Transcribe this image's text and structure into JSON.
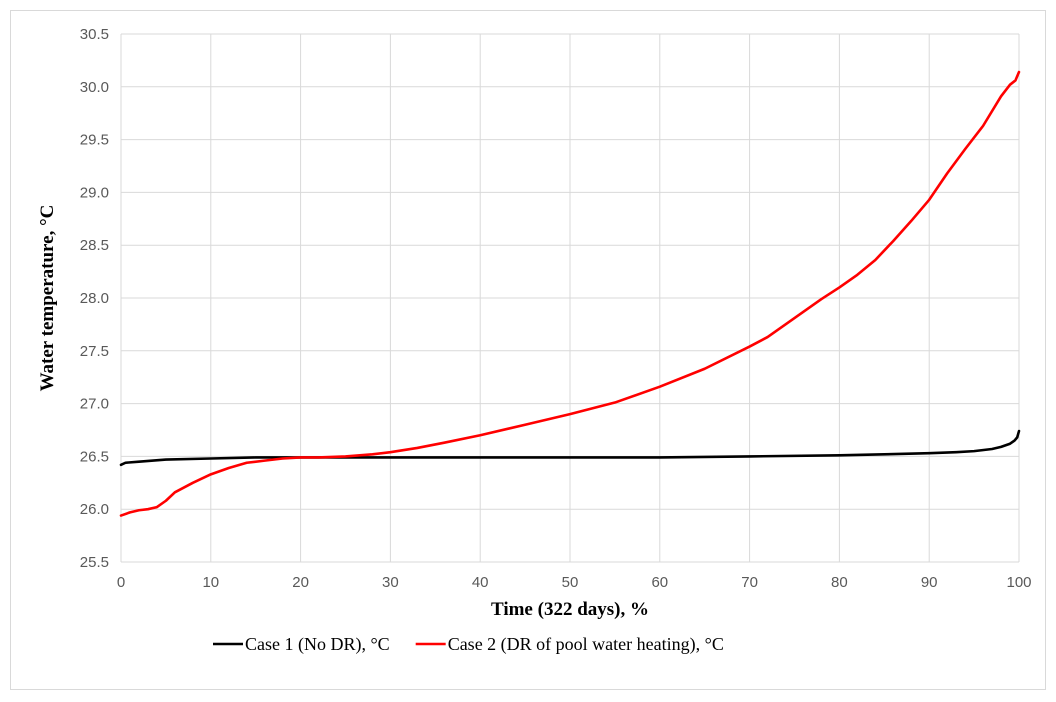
{
  "chart_data": {
    "type": "line",
    "xlabel": "Time (322 days), %",
    "ylabel": "Water temperature, °C",
    "xlim": [
      0,
      100
    ],
    "ylim": [
      25.5,
      30.5
    ],
    "x_ticks": [
      "0",
      "10",
      "20",
      "30",
      "40",
      "50",
      "60",
      "70",
      "80",
      "90",
      "100"
    ],
    "y_ticks": [
      "25.5",
      "26.0",
      "26.5",
      "27.0",
      "27.5",
      "28.0",
      "28.5",
      "29.0",
      "29.5",
      "30.0",
      "30.5"
    ],
    "grid": true,
    "legend_position": "bottom",
    "series": [
      {
        "name": "Case 1 (No DR), °C",
        "color": "#000000",
        "x": [
          0,
          0.5,
          2,
          5,
          10,
          15,
          20,
          30,
          40,
          50,
          60,
          70,
          80,
          85,
          90,
          93,
          95,
          97,
          98,
          99,
          99.5,
          99.8,
          100
        ],
        "y": [
          26.42,
          26.44,
          26.45,
          26.47,
          26.48,
          26.49,
          26.49,
          26.49,
          26.49,
          26.49,
          26.49,
          26.5,
          26.51,
          26.52,
          26.53,
          26.54,
          26.55,
          26.57,
          26.59,
          26.62,
          26.65,
          26.68,
          26.74
        ]
      },
      {
        "name": "Case 2 (DR of pool water heating), °C",
        "color": "#ff0000",
        "x": [
          0,
          1,
          2,
          3,
          4,
          5,
          6,
          8,
          10,
          12,
          14,
          16,
          18,
          20,
          22,
          25,
          28,
          30,
          33,
          36,
          40,
          45,
          50,
          55,
          60,
          65,
          70,
          72,
          75,
          78,
          80,
          82,
          84,
          86,
          88,
          90,
          92,
          94,
          96,
          98,
          99,
          99.6,
          100
        ],
        "y": [
          25.94,
          25.97,
          25.99,
          26.0,
          26.02,
          26.08,
          26.16,
          26.25,
          26.33,
          26.39,
          26.44,
          26.46,
          26.48,
          26.49,
          26.49,
          26.5,
          26.52,
          26.54,
          26.58,
          26.63,
          26.7,
          26.8,
          26.9,
          27.01,
          27.16,
          27.33,
          27.54,
          27.63,
          27.81,
          27.99,
          28.1,
          28.22,
          28.36,
          28.54,
          28.73,
          28.93,
          29.18,
          29.41,
          29.63,
          29.91,
          30.02,
          30.06,
          30.14
        ]
      }
    ]
  }
}
